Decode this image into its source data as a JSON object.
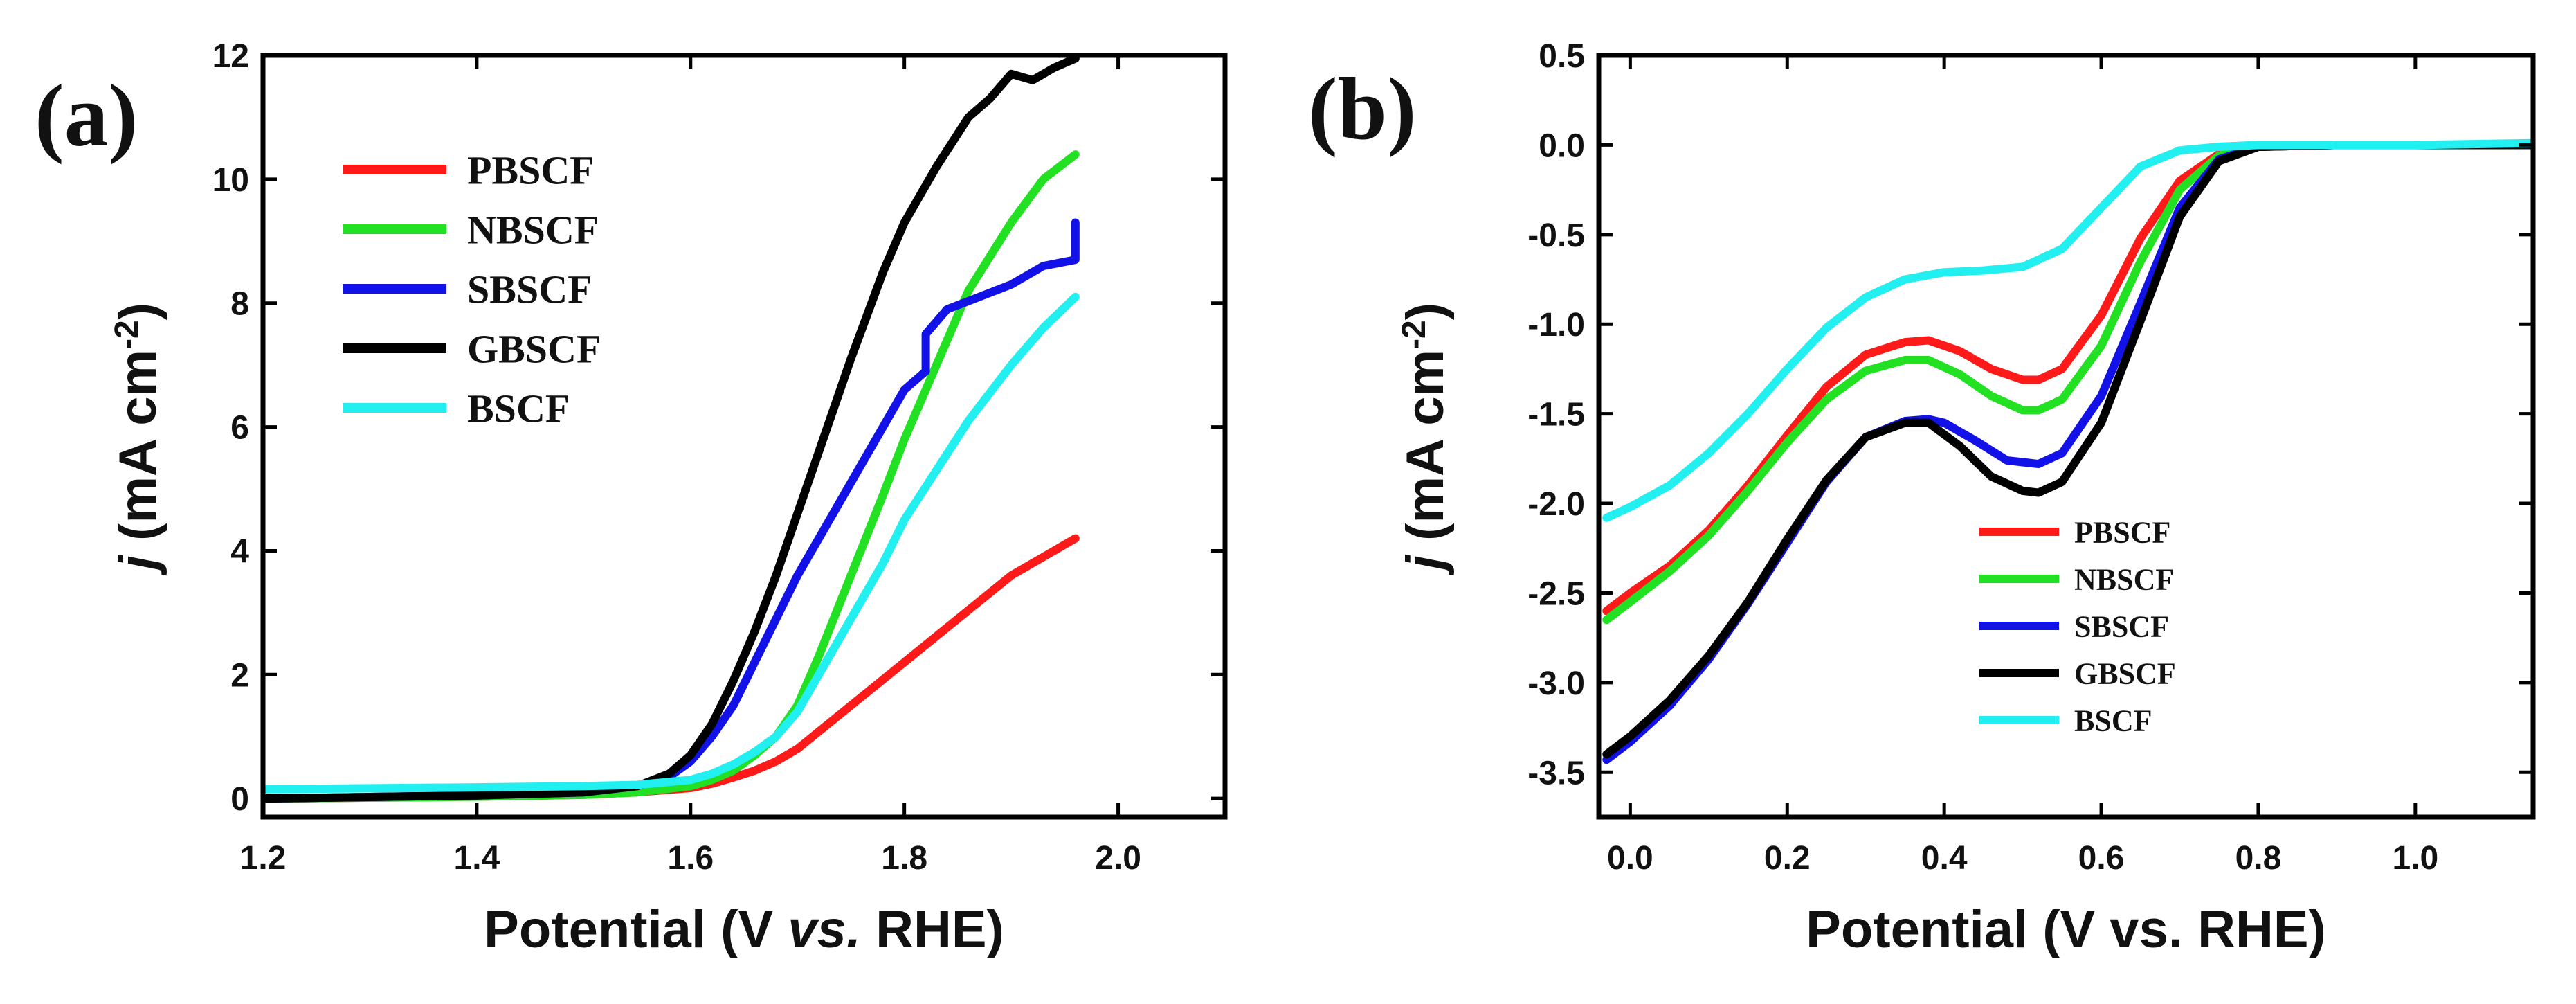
{
  "chart_data": [
    {
      "panel_label": "(a)",
      "type": "line",
      "xlabel_parts": [
        "Potential (V ",
        "vs.",
        " RHE)"
      ],
      "ylabel_parts": [
        "j",
        " (mA cm",
        "-2",
        ")"
      ],
      "xlim": [
        1.2,
        2.1
      ],
      "ylim": [
        -0.3,
        12
      ],
      "xticks": [
        1.2,
        1.4,
        1.6,
        1.8,
        2.0
      ],
      "xtick_labels": [
        "1.2",
        "1.4",
        "1.6",
        "1.8",
        "2.0"
      ],
      "yticks": [
        0,
        2,
        4,
        6,
        8,
        10,
        12
      ],
      "ytick_labels": [
        "0",
        "2",
        "4",
        "6",
        "8",
        "10",
        "12"
      ],
      "legend_position": "top-left",
      "series": [
        {
          "name": "PBSCF",
          "color": "#ff1a1a",
          "x": [
            1.2,
            1.4,
            1.5,
            1.55,
            1.6,
            1.62,
            1.64,
            1.66,
            1.68,
            1.7,
            1.75,
            1.8,
            1.85,
            1.9,
            1.96
          ],
          "y": [
            0.0,
            0.03,
            0.06,
            0.1,
            0.17,
            0.24,
            0.34,
            0.45,
            0.6,
            0.8,
            1.5,
            2.2,
            2.9,
            3.6,
            4.2
          ]
        },
        {
          "name": "NBSCF",
          "color": "#22e022",
          "x": [
            1.2,
            1.4,
            1.5,
            1.55,
            1.6,
            1.62,
            1.64,
            1.66,
            1.68,
            1.7,
            1.72,
            1.75,
            1.78,
            1.8,
            1.83,
            1.86,
            1.9,
            1.93,
            1.96
          ],
          "y": [
            0.0,
            0.03,
            0.06,
            0.1,
            0.2,
            0.3,
            0.45,
            0.7,
            1.0,
            1.5,
            2.3,
            3.6,
            4.9,
            5.8,
            7.0,
            8.2,
            9.3,
            10.0,
            10.4
          ]
        },
        {
          "name": "SBSCF",
          "color": "#1212e8",
          "x": [
            1.2,
            1.4,
            1.5,
            1.55,
            1.58,
            1.6,
            1.62,
            1.64,
            1.66,
            1.68,
            1.7,
            1.72,
            1.74,
            1.76,
            1.78,
            1.8,
            1.82,
            1.82,
            1.84,
            1.87,
            1.9,
            1.93,
            1.96,
            1.96
          ],
          "y": [
            0.0,
            0.05,
            0.1,
            0.2,
            0.35,
            0.6,
            1.0,
            1.5,
            2.2,
            2.9,
            3.6,
            4.2,
            4.8,
            5.4,
            6.0,
            6.6,
            6.9,
            7.5,
            7.9,
            8.1,
            8.3,
            8.6,
            8.7,
            9.3
          ]
        },
        {
          "name": "GBSCF",
          "color": "#000000",
          "x": [
            1.2,
            1.4,
            1.5,
            1.55,
            1.58,
            1.6,
            1.62,
            1.64,
            1.66,
            1.68,
            1.7,
            1.72,
            1.75,
            1.78,
            1.8,
            1.83,
            1.86,
            1.88,
            1.9,
            1.92,
            1.94,
            1.96
          ],
          "y": [
            0.0,
            0.05,
            0.1,
            0.2,
            0.4,
            0.7,
            1.2,
            1.9,
            2.7,
            3.6,
            4.6,
            5.6,
            7.1,
            8.5,
            9.3,
            10.2,
            11.0,
            11.3,
            11.7,
            11.6,
            11.8,
            11.95
          ]
        },
        {
          "name": "BSCF",
          "color": "#22f0f0",
          "x": [
            1.2,
            1.4,
            1.5,
            1.55,
            1.6,
            1.62,
            1.64,
            1.66,
            1.68,
            1.7,
            1.72,
            1.75,
            1.78,
            1.8,
            1.83,
            1.86,
            1.9,
            1.93,
            1.96
          ],
          "y": [
            0.15,
            0.18,
            0.2,
            0.22,
            0.3,
            0.4,
            0.55,
            0.75,
            1.0,
            1.4,
            2.0,
            2.9,
            3.8,
            4.5,
            5.3,
            6.1,
            7.0,
            7.6,
            8.1
          ]
        }
      ]
    },
    {
      "panel_label": "(b)",
      "type": "line",
      "xlabel_parts": [
        "Potential (V vs. RHE)"
      ],
      "ylabel_parts": [
        "j",
        " (mA cm",
        "-2",
        ")"
      ],
      "xlim": [
        -0.04,
        1.15
      ],
      "ylim": [
        -3.75,
        0.5
      ],
      "xticks": [
        0.0,
        0.2,
        0.4,
        0.6,
        0.8,
        1.0
      ],
      "xtick_labels": [
        "0.0",
        "0.2",
        "0.4",
        "0.6",
        "0.8",
        "1.0"
      ],
      "yticks": [
        0.5,
        0.0,
        -0.5,
        -1.0,
        -1.5,
        -2.0,
        -2.5,
        -3.0,
        -3.5
      ],
      "ytick_labels": [
        "0.5",
        "0.0",
        "-0.5",
        "-1.0",
        "-1.5",
        "-2.0",
        "-2.5",
        "-3.0",
        "-3.5"
      ],
      "legend_position": "bottom-center",
      "series": [
        {
          "name": "PBSCF",
          "color": "#ff1a1a",
          "x": [
            -0.03,
            0.0,
            0.05,
            0.1,
            0.15,
            0.2,
            0.25,
            0.3,
            0.35,
            0.38,
            0.42,
            0.46,
            0.5,
            0.52,
            0.55,
            0.6,
            0.65,
            0.7,
            0.75,
            0.8,
            0.9,
            1.0,
            1.15
          ],
          "y": [
            -2.6,
            -2.5,
            -2.35,
            -2.15,
            -1.9,
            -1.62,
            -1.35,
            -1.17,
            -1.1,
            -1.09,
            -1.15,
            -1.25,
            -1.31,
            -1.31,
            -1.25,
            -0.95,
            -0.52,
            -0.2,
            -0.05,
            -0.01,
            0.0,
            0.0,
            0.0
          ]
        },
        {
          "name": "NBSCF",
          "color": "#22e022",
          "x": [
            -0.03,
            0.0,
            0.05,
            0.1,
            0.15,
            0.2,
            0.25,
            0.3,
            0.35,
            0.38,
            0.42,
            0.46,
            0.5,
            0.52,
            0.55,
            0.6,
            0.65,
            0.7,
            0.75,
            0.8,
            0.9,
            1.0,
            1.15
          ],
          "y": [
            -2.65,
            -2.55,
            -2.38,
            -2.18,
            -1.93,
            -1.66,
            -1.42,
            -1.26,
            -1.2,
            -1.2,
            -1.28,
            -1.4,
            -1.48,
            -1.48,
            -1.42,
            -1.12,
            -0.65,
            -0.25,
            -0.06,
            -0.01,
            0.0,
            0.0,
            0.0
          ]
        },
        {
          "name": "SBSCF",
          "color": "#1212e8",
          "x": [
            -0.03,
            0.0,
            0.05,
            0.1,
            0.15,
            0.2,
            0.25,
            0.3,
            0.35,
            0.38,
            0.4,
            0.44,
            0.48,
            0.52,
            0.55,
            0.6,
            0.65,
            0.7,
            0.75,
            0.8,
            0.9,
            1.0,
            1.15
          ],
          "y": [
            -3.43,
            -3.33,
            -3.13,
            -2.87,
            -2.56,
            -2.22,
            -1.88,
            -1.63,
            -1.54,
            -1.53,
            -1.55,
            -1.65,
            -1.76,
            -1.78,
            -1.72,
            -1.4,
            -0.88,
            -0.35,
            -0.08,
            -0.01,
            0.0,
            0.0,
            0.0
          ]
        },
        {
          "name": "GBSCF",
          "color": "#000000",
          "x": [
            -0.03,
            0.0,
            0.05,
            0.1,
            0.15,
            0.2,
            0.25,
            0.3,
            0.35,
            0.38,
            0.42,
            0.46,
            0.5,
            0.52,
            0.55,
            0.6,
            0.65,
            0.7,
            0.75,
            0.8,
            0.9,
            1.0,
            1.15
          ],
          "y": [
            -3.4,
            -3.3,
            -3.1,
            -2.85,
            -2.55,
            -2.2,
            -1.87,
            -1.63,
            -1.55,
            -1.55,
            -1.68,
            -1.85,
            -1.93,
            -1.94,
            -1.88,
            -1.55,
            -0.98,
            -0.4,
            -0.09,
            -0.01,
            0.0,
            0.0,
            0.0
          ]
        },
        {
          "name": "BSCF",
          "color": "#22f0f0",
          "x": [
            -0.03,
            0.0,
            0.05,
            0.1,
            0.15,
            0.2,
            0.25,
            0.3,
            0.35,
            0.4,
            0.45,
            0.5,
            0.55,
            0.6,
            0.65,
            0.7,
            0.75,
            0.8,
            0.9,
            1.0,
            1.15
          ],
          "y": [
            -2.08,
            -2.02,
            -1.9,
            -1.72,
            -1.5,
            -1.25,
            -1.02,
            -0.85,
            -0.75,
            -0.71,
            -0.7,
            -0.68,
            -0.58,
            -0.35,
            -0.12,
            -0.03,
            -0.01,
            0.0,
            0.0,
            0.0,
            0.01
          ]
        }
      ]
    }
  ]
}
